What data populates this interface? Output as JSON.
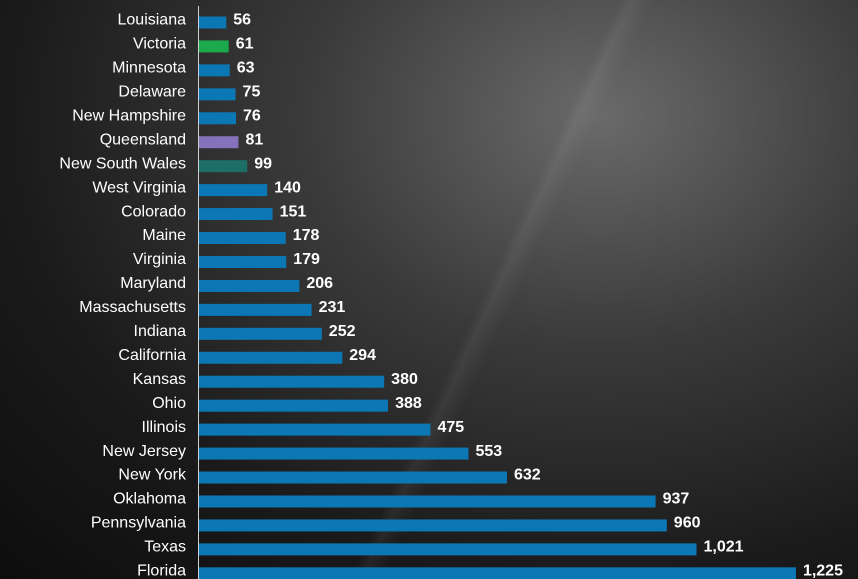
{
  "chart_data": {
    "type": "bar",
    "orientation": "horizontal",
    "categories": [
      "Louisiana",
      "Victoria",
      "Minnesota",
      "Delaware",
      "New Hampshire",
      "Queensland",
      "New South Wales",
      "West Virginia",
      "Colorado",
      "Maine",
      "Virginia",
      "Maryland",
      "Massachusetts",
      "Indiana",
      "California",
      "Kansas",
      "Ohio",
      "Illinois",
      "New Jersey",
      "New York",
      "Oklahoma",
      "Pennsylvania",
      "Texas",
      "Florida"
    ],
    "values": [
      56,
      61,
      63,
      75,
      76,
      81,
      99,
      140,
      151,
      178,
      179,
      206,
      231,
      252,
      294,
      380,
      388,
      475,
      553,
      632,
      937,
      960,
      1021,
      1225
    ],
    "value_labels": [
      "56",
      "61",
      "63",
      "75",
      "76",
      "81",
      "99",
      "140",
      "151",
      "178",
      "179",
      "206",
      "231",
      "252",
      "294",
      "380",
      "388",
      "475",
      "553",
      "632",
      "937",
      "960",
      "1,021",
      "1,225"
    ],
    "colors": [
      "#0b78b5",
      "#1ba94c",
      "#0b78b5",
      "#0b78b5",
      "#0b78b5",
      "#8672ba",
      "#1d6e66",
      "#0b78b5",
      "#0b78b5",
      "#0b78b5",
      "#0b78b5",
      "#0b78b5",
      "#0b78b5",
      "#0b78b5",
      "#0b78b5",
      "#0b78b5",
      "#0b78b5",
      "#0b78b5",
      "#0b78b5",
      "#0b78b5",
      "#0b78b5",
      "#0b78b5",
      "#0b78b5",
      "#0b78b5"
    ],
    "xlim": [
      0,
      1260
    ]
  }
}
